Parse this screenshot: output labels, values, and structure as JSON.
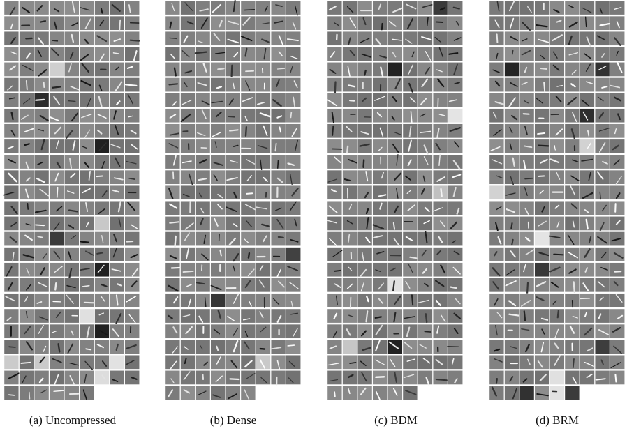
{
  "figure": {
    "panels": [
      {
        "caption": "(a) Uncompressed"
      },
      {
        "caption": "(b) Dense"
      },
      {
        "caption": "(c) BDM"
      },
      {
        "caption": "(d) BRM"
      }
    ]
  }
}
